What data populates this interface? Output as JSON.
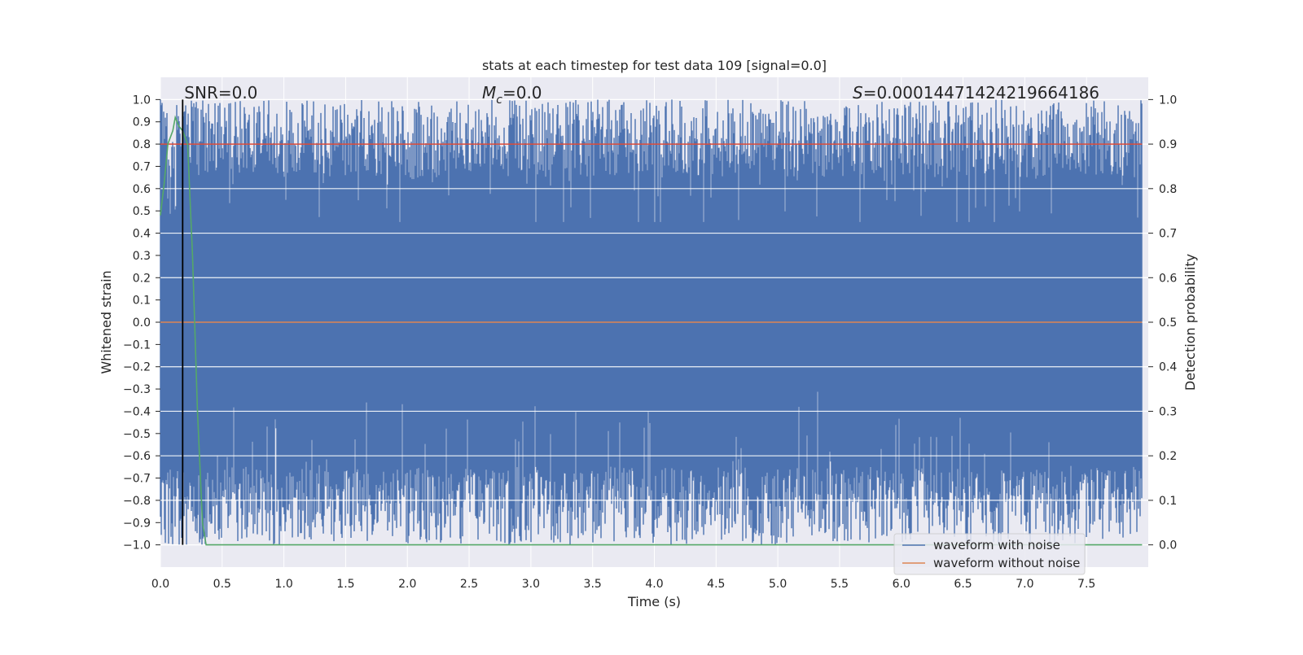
{
  "chart_data": {
    "type": "line",
    "title": "stats at each timestep for test data 109 [signal=0.0]",
    "xlabel": "Time (s)",
    "ylabel": "Whitened strain",
    "ylabel_right": "Detection probability",
    "xlim": [
      0.0,
      8.0
    ],
    "ylim": [
      -1.1,
      1.1
    ],
    "ylim_right": [
      -0.05,
      1.05
    ],
    "x_ticks": [
      "0.0",
      "0.5",
      "1.0",
      "1.5",
      "2.0",
      "2.5",
      "3.0",
      "3.5",
      "4.0",
      "4.5",
      "5.0",
      "5.5",
      "6.0",
      "6.5",
      "7.0",
      "7.5"
    ],
    "y_ticks_left": [
      "−1.0",
      "−0.9",
      "−0.8",
      "−0.7",
      "−0.6",
      "−0.5",
      "−0.4",
      "−0.3",
      "−0.2",
      "−0.1",
      "0.0",
      "0.1",
      "0.2",
      "0.3",
      "0.4",
      "0.5",
      "0.6",
      "0.7",
      "0.8",
      "0.9",
      "1.0"
    ],
    "y_ticks_right": [
      "0.0",
      "0.1",
      "0.2",
      "0.3",
      "0.4",
      "0.5",
      "0.6",
      "0.7",
      "0.8",
      "0.9",
      "1.0"
    ],
    "grid": true,
    "legend_position": "lower-right",
    "annotations": {
      "snr": "SNR=0.0",
      "mc_symbol": "M",
      "mc_subscript": "c",
      "mc_value": "=0.0",
      "s_symbol": "S",
      "s_value": "=0.00014471424219664186"
    },
    "series": [
      {
        "name": "waveform with noise",
        "color": "#4c72b0",
        "axis": "left",
        "description_range": [
          -1.0,
          1.0
        ]
      },
      {
        "name": "waveform without noise",
        "color": "#dd8452",
        "axis": "left",
        "x": [
          0.0,
          7.95
        ],
        "y": [
          0.0,
          0.0
        ]
      },
      {
        "axis": "right",
        "color": "#55a868",
        "x": [
          0.0,
          0.03,
          0.06,
          0.1,
          0.12,
          0.15,
          0.18,
          0.22,
          0.26,
          0.3,
          0.34,
          0.37,
          0.5,
          7.95
        ],
        "y": [
          0.74,
          0.81,
          0.9,
          0.93,
          0.96,
          0.94,
          0.93,
          0.9,
          0.65,
          0.3,
          0.05,
          0.0,
          0.0,
          0.0
        ]
      },
      {
        "axis": "right",
        "color": "#dd4b39",
        "x": [
          0.0,
          7.95
        ],
        "y": [
          0.9,
          0.9
        ]
      }
    ],
    "marker_x": 0.18
  },
  "colors": {
    "background": "#eaeaf2",
    "grid": "#ffffff",
    "noise": "#4c72b0",
    "clean": "#dd8452",
    "probability": "#55a868",
    "threshold": "#dd4b39",
    "marker": "#000000"
  }
}
